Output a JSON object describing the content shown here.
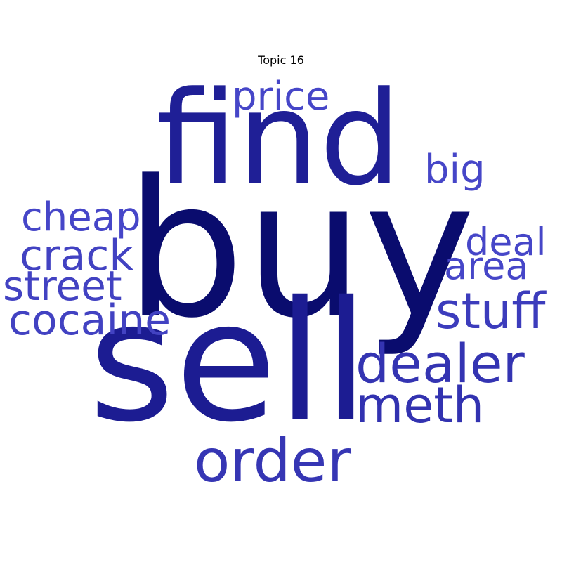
{
  "title": "Topic 16",
  "words": [
    {
      "text": "buy",
      "color": "#0a0c6e"
    },
    {
      "text": "find",
      "color": "#1f1f96"
    },
    {
      "text": "sell",
      "color": "#1c1c92"
    },
    {
      "text": "price",
      "color": "#4646c8"
    },
    {
      "text": "big",
      "color": "#4646c8"
    },
    {
      "text": "cheap",
      "color": "#4646c8"
    },
    {
      "text": "crack",
      "color": "#4242c2"
    },
    {
      "text": "street",
      "color": "#4242c2"
    },
    {
      "text": "cocaine",
      "color": "#4242c2"
    },
    {
      "text": "deal",
      "color": "#4646c8"
    },
    {
      "text": "area",
      "color": "#4646c8"
    },
    {
      "text": "stuff",
      "color": "#3c3cbc"
    },
    {
      "text": "dealer",
      "color": "#3434b2"
    },
    {
      "text": "meth",
      "color": "#3232b0"
    },
    {
      "text": "order",
      "color": "#3636b4"
    }
  ]
}
